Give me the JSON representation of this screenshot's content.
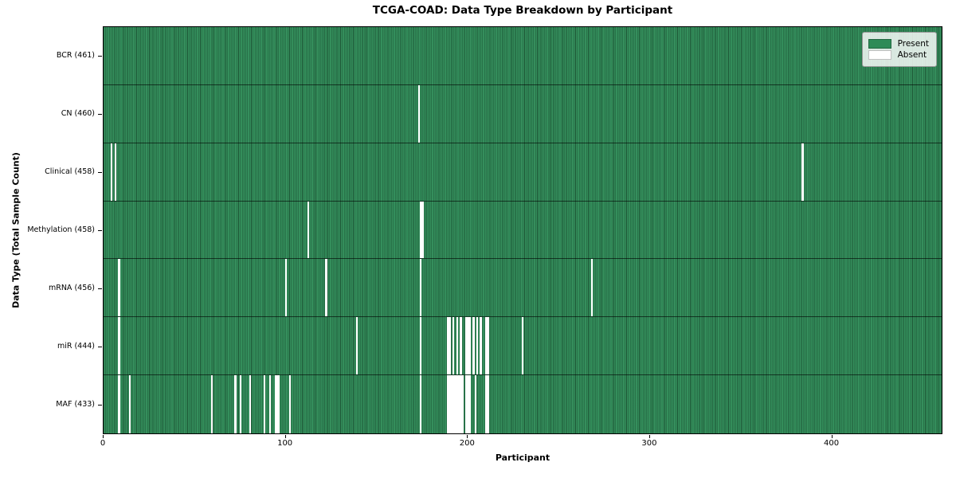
{
  "chart_data": {
    "type": "heatmap",
    "title": "TCGA-COAD: Data Type Breakdown by Participant",
    "xlabel": "Participant",
    "ylabel": "Data Type (Total Sample Count)",
    "n_participants": 461,
    "x_ticks": [
      0,
      100,
      200,
      300,
      400
    ],
    "present_color": "#2e8b57",
    "absent_color": "#ffffff",
    "legend": [
      {
        "label": "Present",
        "color": "#2e8b57"
      },
      {
        "label": "Absent",
        "color": "#ffffff"
      }
    ],
    "rows": [
      {
        "label": "BCR (461)",
        "total": 461,
        "absent": []
      },
      {
        "label": "CN (460)",
        "total": 460,
        "absent": [
          173
        ]
      },
      {
        "label": "Clinical (458)",
        "total": 458,
        "absent": [
          4,
          6,
          384
        ]
      },
      {
        "label": "Methylation (458)",
        "total": 458,
        "absent": [
          112,
          174,
          175
        ]
      },
      {
        "label": "mRNA (456)",
        "total": 456,
        "absent": [
          8,
          100,
          122,
          174,
          268
        ]
      },
      {
        "label": "miR (444)",
        "total": 444,
        "absent": [
          8,
          139,
          174,
          189,
          190,
          192,
          194,
          196,
          199,
          200,
          201,
          203,
          205,
          207,
          210,
          211,
          230
        ]
      },
      {
        "label": "MAF (433)",
        "total": 433,
        "absent": [
          8,
          14,
          59,
          72,
          75,
          80,
          88,
          91,
          94,
          95,
          96,
          102,
          174,
          189,
          190,
          191,
          192,
          193,
          194,
          195,
          196,
          197,
          199,
          200,
          201,
          204,
          210,
          211
        ]
      }
    ]
  }
}
